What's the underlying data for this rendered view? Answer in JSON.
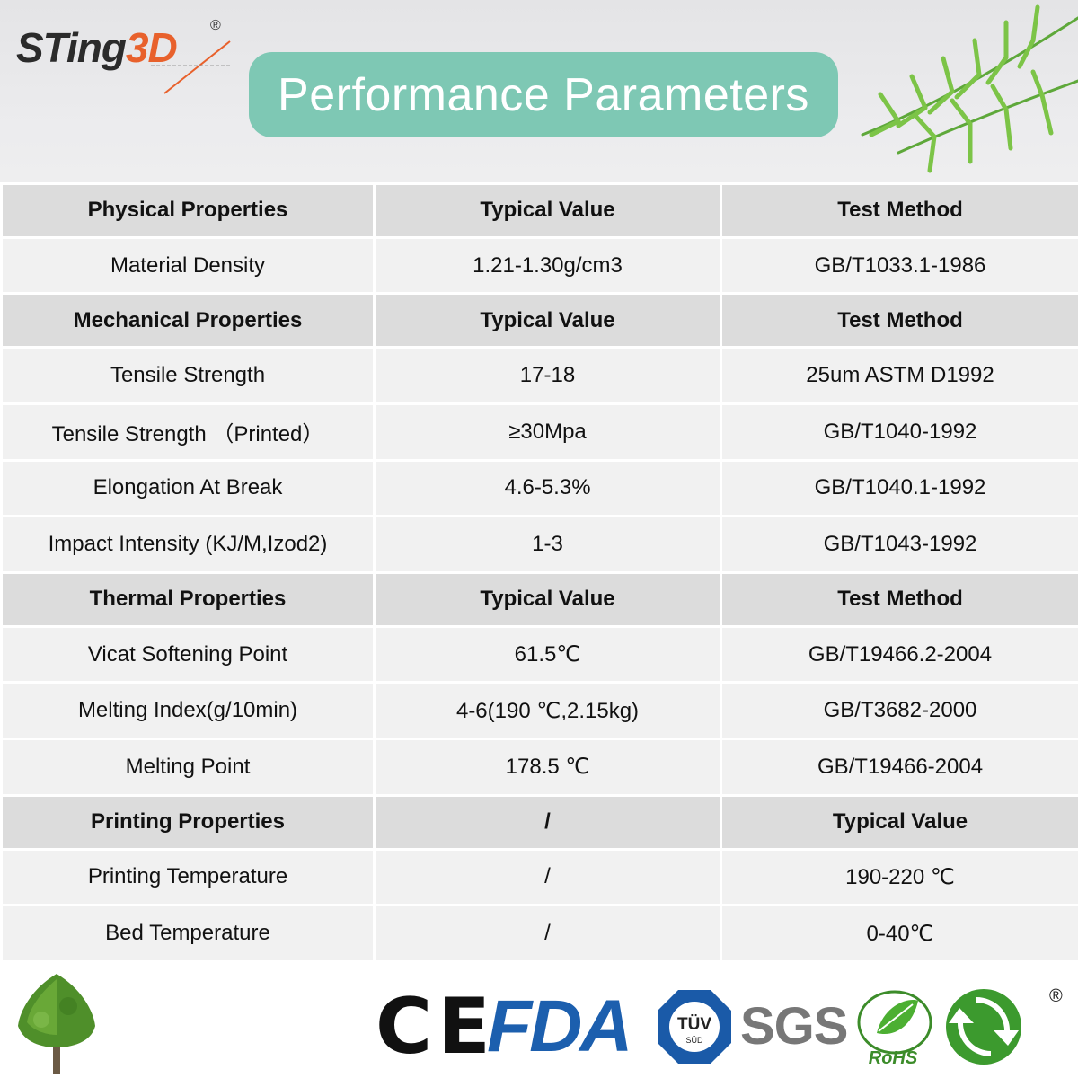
{
  "brand": {
    "name_main": "STing",
    "name_accent": "3D",
    "registered": "®"
  },
  "banner": {
    "title": "Performance Parameters"
  },
  "table": {
    "rows": [
      {
        "type": "head",
        "cells": [
          "Physical Properties",
          "Typical Value",
          "Test Method"
        ]
      },
      {
        "type": "row",
        "cells": [
          "Material Density",
          "1.21-1.30g/cm3",
          "GB/T1033.1-1986"
        ]
      },
      {
        "type": "head",
        "cells": [
          "Mechanical Properties",
          "Typical Value",
          "Test Method"
        ]
      },
      {
        "type": "row",
        "cells": [
          "Tensile Strength",
          "17-18",
          "25um ASTM D1992"
        ]
      },
      {
        "type": "row",
        "cells": [
          "Tensile Strength （Printed）",
          "≥30Mpa",
          "GB/T1040-1992"
        ]
      },
      {
        "type": "row",
        "cells": [
          "Elongation At Break",
          "4.6-5.3%",
          "GB/T1040.1-1992"
        ]
      },
      {
        "type": "row",
        "cells": [
          "Impact Intensity (KJ/M,Izod2)",
          "1-3",
          "GB/T1043-1992"
        ]
      },
      {
        "type": "head",
        "cells": [
          "Thermal Properties",
          "Typical Value",
          "Test Method"
        ]
      },
      {
        "type": "row",
        "cells": [
          "Vicat Softening Point",
          "61.5℃",
          "GB/T19466.2-2004"
        ]
      },
      {
        "type": "row",
        "cells": [
          "Melting Index(g/10min)",
          "4-6(190 ℃,2.15kg)",
          "GB/T3682-2000"
        ]
      },
      {
        "type": "row",
        "cells": [
          "Melting Point",
          "178.5 ℃",
          "GB/T19466-2004"
        ]
      },
      {
        "type": "head",
        "cells": [
          "Printing Properties",
          "/",
          "Typical Value"
        ]
      },
      {
        "type": "row",
        "cells": [
          "Printing Temperature",
          "/",
          "190-220 ℃"
        ]
      },
      {
        "type": "row",
        "cells": [
          "Bed Temperature",
          "/",
          "0-40℃"
        ]
      }
    ]
  },
  "certifications": {
    "ce": "CE",
    "fda": "FDA",
    "tuv_main": "TÜV",
    "tuv_sub": "SÜD",
    "sgs": "SGS",
    "rohs": "RoHS",
    "registered": "®"
  },
  "colors": {
    "banner_bg": "#7ec8b4",
    "header_row_bg": "#dcdcdc",
    "data_row_bg": "#f1f1f1",
    "logo_accent": "#e8612c",
    "fda_blue": "#1c5fae",
    "tuv_blue": "#1a5aa8",
    "rohs_green": "#3c8c2a"
  }
}
